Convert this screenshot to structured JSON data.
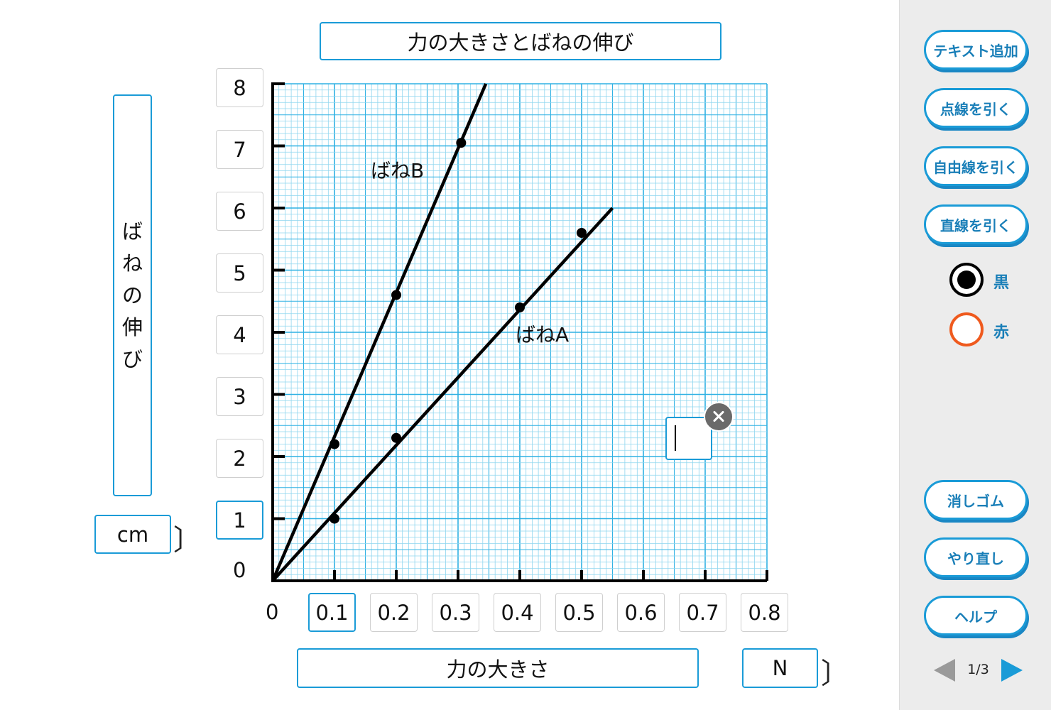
{
  "graph": {
    "title": "力の大きさとばねの伸び",
    "y_label_chars": [
      "ば",
      "ね",
      "の",
      "伸",
      "び"
    ],
    "y_unit": "cm",
    "x_label": "力の大きさ",
    "x_unit": "N",
    "bracket_open": "〔",
    "bracket_close": "〕",
    "y_ticks": [
      "8",
      "7",
      "6",
      "5",
      "4",
      "3",
      "2",
      "1"
    ],
    "x_ticks": [
      "0.1",
      "0.2",
      "0.3",
      "0.4",
      "0.5",
      "0.6",
      "0.7",
      "0.8"
    ],
    "y_zero": "0",
    "x_zero": "0",
    "line_labels": {
      "spring_b": "ばねB",
      "spring_a": "ばねA"
    }
  },
  "chart_data": {
    "type": "scatter",
    "xlabel": "力の大きさ",
    "ylabel": "ばねの伸び",
    "xlim": [
      0,
      0.8
    ],
    "ylim": [
      0,
      8
    ],
    "grid": true,
    "series": [
      {
        "name": "ばねB",
        "points": [
          [
            0.1,
            2.2
          ],
          [
            0.2,
            4.6
          ],
          [
            0.305,
            7.05
          ]
        ],
        "line": [
          [
            0,
            0
          ],
          [
            0.345,
            8.0
          ]
        ]
      },
      {
        "name": "ばねA",
        "points": [
          [
            0.1,
            1.0
          ],
          [
            0.2,
            2.3
          ],
          [
            0.4,
            4.4
          ],
          [
            0.5,
            5.6
          ]
        ],
        "line": [
          [
            0,
            0
          ],
          [
            0.55,
            6.0
          ]
        ]
      }
    ]
  },
  "sidebar": {
    "buttons": {
      "add_text": "テキスト追加",
      "dotted_line": "点線を引く",
      "free_line": "自由線を引く",
      "straight_line": "直線を引く",
      "eraser": "消しゴム",
      "redo": "やり直し",
      "help": "ヘルプ"
    },
    "colors": {
      "black": "黒",
      "red": "赤"
    },
    "page": "1/3"
  },
  "colors": {
    "accent": "#1a9bd7",
    "grid_fine": "#8fd6ef",
    "grid_major": "#2fb1e3",
    "red_option": "#ef5a1e"
  }
}
